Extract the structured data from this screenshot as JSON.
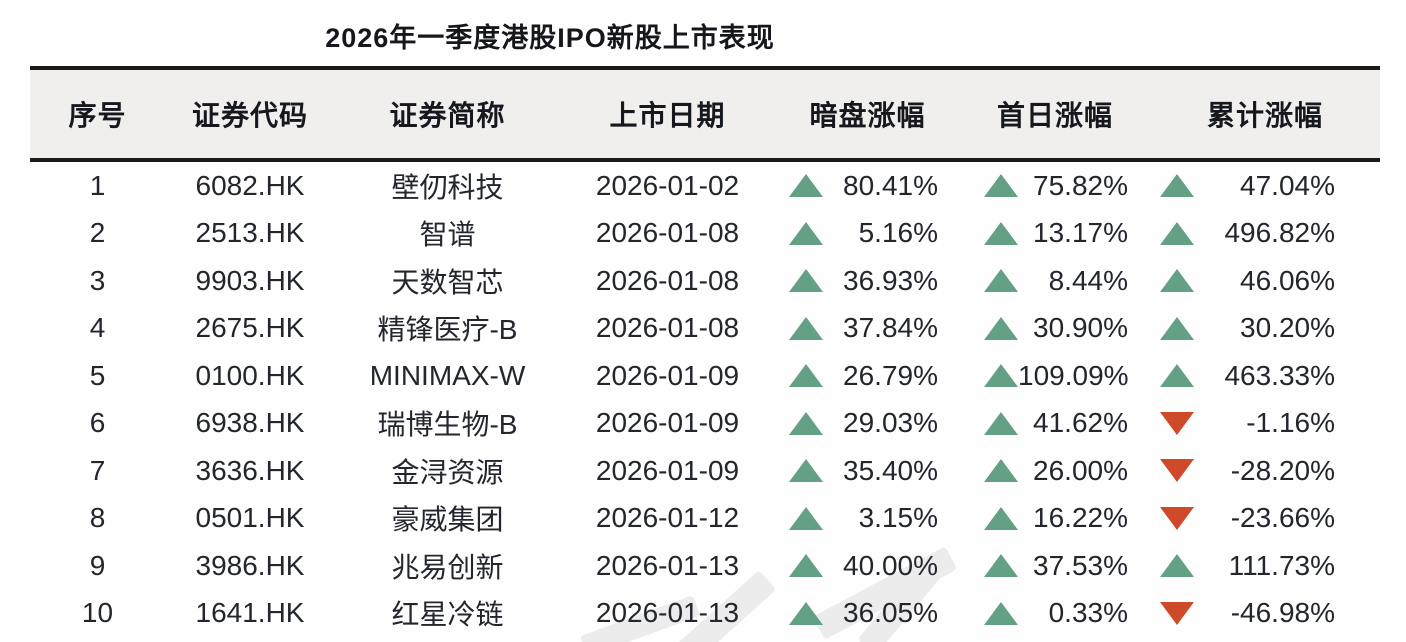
{
  "title": "2026年一季度港股IPO新股上市表现",
  "colors": {
    "up_triangle": "#64a184",
    "down_triangle": "#cf4a28",
    "header_background": "#f0efee",
    "rule": "#1a1a1a",
    "text": "#23262d"
  },
  "table": {
    "headers": {
      "no": "序号",
      "code": "证券代码",
      "name": "证券简称",
      "date": "上市日期",
      "dark": "暗盘涨幅",
      "first": "首日涨幅",
      "cum": "累计涨幅"
    },
    "rows": [
      {
        "no": "1",
        "code": "6082.HK",
        "name": "壁仞科技",
        "date": "2026-01-02",
        "dark": {
          "dir": "up",
          "value": "80.41%"
        },
        "first": {
          "dir": "up",
          "value": "75.82%"
        },
        "cum": {
          "dir": "up",
          "value": "47.04%"
        }
      },
      {
        "no": "2",
        "code": "2513.HK",
        "name": "智谱",
        "date": "2026-01-08",
        "dark": {
          "dir": "up",
          "value": "5.16%"
        },
        "first": {
          "dir": "up",
          "value": "13.17%"
        },
        "cum": {
          "dir": "up",
          "value": "496.82%"
        }
      },
      {
        "no": "3",
        "code": "9903.HK",
        "name": "天数智芯",
        "date": "2026-01-08",
        "dark": {
          "dir": "up",
          "value": "36.93%"
        },
        "first": {
          "dir": "up",
          "value": "8.44%"
        },
        "cum": {
          "dir": "up",
          "value": "46.06%"
        }
      },
      {
        "no": "4",
        "code": "2675.HK",
        "name": "精锋医疗-B",
        "date": "2026-01-08",
        "dark": {
          "dir": "up",
          "value": "37.84%"
        },
        "first": {
          "dir": "up",
          "value": "30.90%"
        },
        "cum": {
          "dir": "up",
          "value": "30.20%"
        }
      },
      {
        "no": "5",
        "code": "0100.HK",
        "name": "MINIMAX-W",
        "date": "2026-01-09",
        "dark": {
          "dir": "up",
          "value": "26.79%"
        },
        "first": {
          "dir": "up",
          "value": "109.09%"
        },
        "cum": {
          "dir": "up",
          "value": "463.33%"
        }
      },
      {
        "no": "6",
        "code": "6938.HK",
        "name": "瑞博生物-B",
        "date": "2026-01-09",
        "dark": {
          "dir": "up",
          "value": "29.03%"
        },
        "first": {
          "dir": "up",
          "value": "41.62%"
        },
        "cum": {
          "dir": "down",
          "value": "-1.16%"
        }
      },
      {
        "no": "7",
        "code": "3636.HK",
        "name": "金浔资源",
        "date": "2026-01-09",
        "dark": {
          "dir": "up",
          "value": "35.40%"
        },
        "first": {
          "dir": "up",
          "value": "26.00%"
        },
        "cum": {
          "dir": "down",
          "value": "-28.20%"
        }
      },
      {
        "no": "8",
        "code": "0501.HK",
        "name": "豪威集团",
        "date": "2026-01-12",
        "dark": {
          "dir": "up",
          "value": "3.15%"
        },
        "first": {
          "dir": "up",
          "value": "16.22%"
        },
        "cum": {
          "dir": "down",
          "value": "-23.66%"
        }
      },
      {
        "no": "9",
        "code": "3986.HK",
        "name": "兆易创新",
        "date": "2026-01-13",
        "dark": {
          "dir": "up",
          "value": "40.00%"
        },
        "first": {
          "dir": "up",
          "value": "37.53%"
        },
        "cum": {
          "dir": "up",
          "value": "111.73%"
        }
      },
      {
        "no": "10",
        "code": "1641.HK",
        "name": "红星冷链",
        "date": "2026-01-13",
        "dark": {
          "dir": "up",
          "value": "36.05%"
        },
        "first": {
          "dir": "up",
          "value": "0.33%"
        },
        "cum": {
          "dir": "down",
          "value": "-46.98%"
        }
      }
    ]
  },
  "chart_data": {
    "type": "table",
    "title": "2026年一季度港股IPO新股上市表现",
    "columns": [
      "序号",
      "证券代码",
      "证券简称",
      "上市日期",
      "暗盘涨幅",
      "首日涨幅",
      "累计涨幅"
    ],
    "rows": [
      [
        1,
        "6082.HK",
        "壁仞科技",
        "2026-01-02",
        80.41,
        75.82,
        47.04
      ],
      [
        2,
        "2513.HK",
        "智谱",
        "2026-01-08",
        5.16,
        13.17,
        496.82
      ],
      [
        3,
        "9903.HK",
        "天数智芯",
        "2026-01-08",
        36.93,
        8.44,
        46.06
      ],
      [
        4,
        "2675.HK",
        "精锋医疗-B",
        "2026-01-08",
        37.84,
        30.9,
        30.2
      ],
      [
        5,
        "0100.HK",
        "MINIMAX-W",
        "2026-01-09",
        26.79,
        109.09,
        463.33
      ],
      [
        6,
        "6938.HK",
        "瑞博生物-B",
        "2026-01-09",
        29.03,
        41.62,
        -1.16
      ],
      [
        7,
        "3636.HK",
        "金浔资源",
        "2026-01-09",
        35.4,
        26.0,
        -28.2
      ],
      [
        8,
        "0501.HK",
        "豪威集团",
        "2026-01-12",
        3.15,
        16.22,
        -23.66
      ],
      [
        9,
        "3986.HK",
        "兆易创新",
        "2026-01-13",
        40.0,
        37.53,
        111.73
      ],
      [
        10,
        "1641.HK",
        "红星冷链",
        "2026-01-13",
        36.05,
        0.33,
        -46.98
      ]
    ],
    "value_unit": "percent",
    "notes": "上涨 = 绿色上三角, 下跌 = 红色下三角"
  }
}
